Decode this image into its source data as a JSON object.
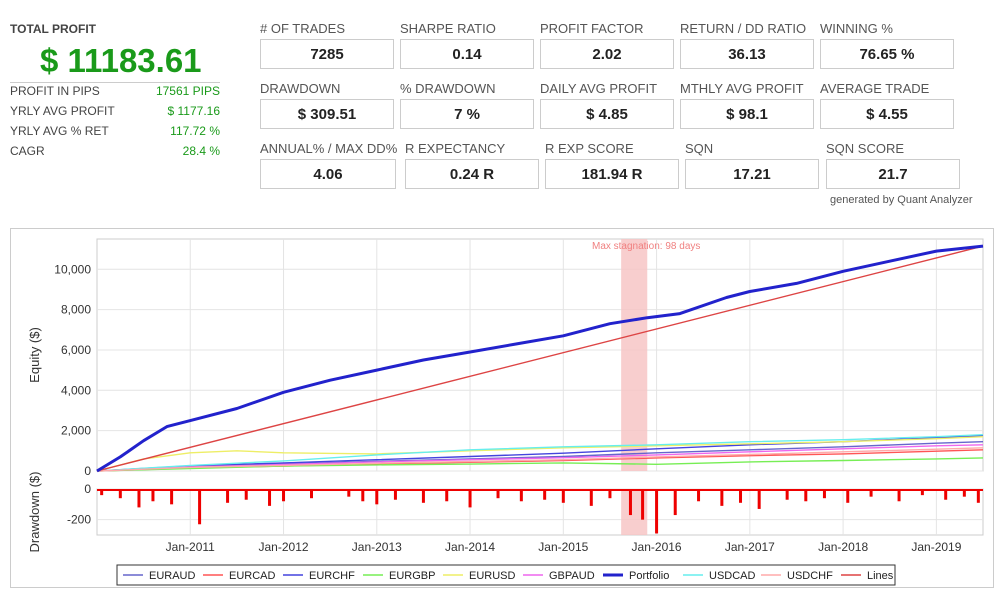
{
  "summary": {
    "total_profit_label": "TOTAL PROFIT",
    "total_profit_value": "$ 11183.61",
    "rows": [
      {
        "label": "PROFIT IN PIPS",
        "value": "17561 PIPS"
      },
      {
        "label": "YRLY AVG PROFIT",
        "value": "$ 1177.16"
      },
      {
        "label": "YRLY AVG % RET",
        "value": "117.72 %"
      },
      {
        "label": "CAGR",
        "value": "28.4 %"
      }
    ]
  },
  "metrics": [
    {
      "label": "# OF TRADES",
      "value": "7285"
    },
    {
      "label": "SHARPE RATIO",
      "value": "0.14"
    },
    {
      "label": "PROFIT FACTOR",
      "value": "2.02"
    },
    {
      "label": "RETURN / DD RATIO",
      "value": "36.13"
    },
    {
      "label": "WINNING %",
      "value": "76.65 %"
    },
    {
      "label": "DRAWDOWN",
      "value": "$ 309.51"
    },
    {
      "label": "% DRAWDOWN",
      "value": "7 %"
    },
    {
      "label": "DAILY AVG PROFIT",
      "value": "$ 4.85"
    },
    {
      "label": "MTHLY AVG PROFIT",
      "value": "$ 98.1"
    },
    {
      "label": "AVERAGE TRADE",
      "value": "$ 4.55"
    },
    {
      "label": "ANNUAL% / MAX DD%",
      "value": "4.06"
    },
    {
      "label": "R EXPECTANCY",
      "value": "0.24 R"
    },
    {
      "label": "R EXP SCORE",
      "value": "181.94 R"
    },
    {
      "label": "SQN",
      "value": "17.21"
    },
    {
      "label": "SQN SCORE",
      "value": "21.7"
    }
  ],
  "credit": "generated by Quant Analyzer",
  "chart_data": {
    "type": "line",
    "ylabel": "Equity ($)",
    "ylabel_drawdown": "Drawdown ($)",
    "ylim": [
      0,
      11500
    ],
    "ylim_drawdown": [
      -300,
      0
    ],
    "yticks": [
      0,
      2000,
      4000,
      6000,
      8000,
      10000
    ],
    "ytick_labels": [
      "0",
      "2,000",
      "4,000",
      "6,000",
      "8,000",
      "10,000"
    ],
    "yticks_drawdown": [
      0,
      -200
    ],
    "ytick_labels_drawdown": [
      "0",
      "-200"
    ],
    "xlim": [
      2010.0,
      2019.5
    ],
    "xticks": [
      2011,
      2012,
      2013,
      2014,
      2015,
      2016,
      2017,
      2018,
      2019
    ],
    "xtick_labels": [
      "Jan-2011",
      "Jan-2012",
      "Jan-2013",
      "Jan-2014",
      "Jan-2015",
      "Jan-2016",
      "Jan-2017",
      "Jan-2018",
      "Jan-2019"
    ],
    "grid": true,
    "stagnation": {
      "label": "Max stagnation: 98 days",
      "start": 2015.62,
      "end": 2015.9,
      "color": "#f7c6c6"
    },
    "series": [
      {
        "name": "EURAUD",
        "color": "#6666cc",
        "x": [
          2010.0,
          2011.0,
          2012.0,
          2013.0,
          2014.0,
          2015.0,
          2016.0,
          2017.0,
          2018.0,
          2019.0,
          2019.5
        ],
        "y": [
          0,
          230,
          350,
          480,
          600,
          720,
          900,
          1050,
          1200,
          1380,
          1450
        ]
      },
      {
        "name": "EURCAD",
        "color": "#ff5555",
        "x": [
          2010.0,
          2011.0,
          2012.0,
          2013.0,
          2014.0,
          2015.0,
          2016.0,
          2017.0,
          2018.0,
          2019.0,
          2019.5
        ],
        "y": [
          0,
          150,
          250,
          350,
          430,
          520,
          650,
          760,
          850,
          980,
          1050
        ]
      },
      {
        "name": "EURCHF",
        "color": "#4444dd",
        "x": [
          2010.0,
          2011.0,
          2012.0,
          2013.0,
          2014.0,
          2015.0,
          2016.0,
          2017.0,
          2018.0,
          2019.0,
          2019.5
        ],
        "y": [
          0,
          260,
          400,
          560,
          720,
          880,
          1100,
          1300,
          1450,
          1650,
          1750
        ]
      },
      {
        "name": "EURGBP",
        "color": "#77ee55",
        "x": [
          2010.0,
          2011.0,
          2012.0,
          2013.0,
          2014.0,
          2015.0,
          2016.0,
          2017.0,
          2018.0,
          2019.0,
          2019.5
        ],
        "y": [
          0,
          120,
          250,
          300,
          340,
          400,
          330,
          450,
          520,
          600,
          650
        ]
      },
      {
        "name": "EURUSD",
        "color": "#eeee66",
        "x": [
          2010.0,
          2010.5,
          2011.0,
          2011.5,
          2012.0,
          2013.0,
          2014.0,
          2015.0,
          2016.0,
          2017.0,
          2018.0,
          2019.0,
          2019.5
        ],
        "y": [
          0,
          600,
          900,
          1000,
          900,
          850,
          1000,
          1150,
          1250,
          1350,
          1450,
          1600,
          1700
        ]
      },
      {
        "name": "GBPAUD",
        "color": "#ee66ee",
        "x": [
          2010.0,
          2011.0,
          2012.0,
          2013.0,
          2014.0,
          2015.0,
          2016.0,
          2017.0,
          2018.0,
          2019.0,
          2019.5
        ],
        "y": [
          0,
          200,
          320,
          450,
          560,
          660,
          800,
          950,
          1100,
          1250,
          1300
        ]
      },
      {
        "name": "Portfolio",
        "color": "#2222cc",
        "bold": true,
        "x": [
          2010.0,
          2010.25,
          2010.5,
          2010.75,
          2011.0,
          2011.5,
          2012.0,
          2012.5,
          2013.0,
          2013.5,
          2014.0,
          2014.5,
          2015.0,
          2015.5,
          2015.9,
          2016.25,
          2016.75,
          2017.0,
          2017.5,
          2018.0,
          2018.5,
          2019.0,
          2019.5
        ],
        "y": [
          0,
          700,
          1500,
          2200,
          2500,
          3100,
          3900,
          4500,
          5000,
          5500,
          5900,
          6300,
          6700,
          7300,
          7600,
          7800,
          8600,
          8900,
          9300,
          9900,
          10400,
          10900,
          11150
        ]
      },
      {
        "name": "USDCAD",
        "color": "#66eeee",
        "x": [
          2010.0,
          2011.0,
          2012.0,
          2013.0,
          2014.0,
          2015.0,
          2016.0,
          2017.0,
          2018.0,
          2019.0,
          2019.5
        ],
        "y": [
          0,
          280,
          500,
          800,
          1050,
          1200,
          1300,
          1450,
          1550,
          1700,
          1800
        ]
      },
      {
        "name": "USDCHF",
        "color": "#ffaaaa",
        "x": [
          2010.0,
          2011.0,
          2012.0,
          2013.0,
          2014.0,
          2015.0,
          2016.0,
          2017.0,
          2018.0,
          2019.0,
          2019.5
        ],
        "y": [
          0,
          180,
          280,
          380,
          470,
          560,
          700,
          820,
          950,
          1080,
          1150
        ]
      },
      {
        "name": "Lines",
        "color": "#dd4444",
        "x": [
          2010.0,
          2019.5
        ],
        "y": [
          0,
          11150
        ]
      }
    ],
    "drawdown": {
      "name": "Drawdown",
      "color": "#ee0000",
      "x": [
        2010.05,
        2010.25,
        2010.45,
        2010.6,
        2010.8,
        2011.1,
        2011.4,
        2011.6,
        2011.85,
        2012.0,
        2012.3,
        2012.7,
        2012.85,
        2013.0,
        2013.2,
        2013.5,
        2013.75,
        2014.0,
        2014.3,
        2014.55,
        2014.8,
        2015.0,
        2015.3,
        2015.5,
        2015.72,
        2015.85,
        2016.0,
        2016.2,
        2016.45,
        2016.7,
        2016.9,
        2017.1,
        2017.4,
        2017.6,
        2017.8,
        2018.05,
        2018.3,
        2018.6,
        2018.85,
        2019.1,
        2019.3,
        2019.45
      ],
      "y": [
        -40,
        -60,
        -120,
        -80,
        -100,
        -230,
        -90,
        -70,
        -110,
        -80,
        -60,
        -50,
        -80,
        -100,
        -70,
        -90,
        -80,
        -120,
        -60,
        -80,
        -70,
        -90,
        -110,
        -60,
        -170,
        -200,
        -290,
        -170,
        -80,
        -110,
        -90,
        -130,
        -70,
        -80,
        -60,
        -90,
        -50,
        -80,
        -40,
        -70,
        -50,
        -90
      ]
    }
  }
}
